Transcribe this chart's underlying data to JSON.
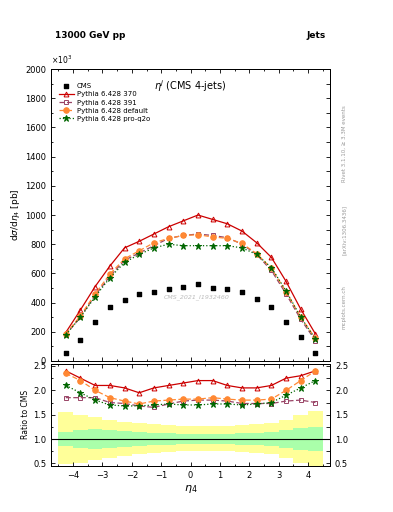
{
  "header_left": "13000 GeV pp",
  "header_right": "Jets",
  "plot_title": "ηʲ (CMS 4-jets)",
  "ylabel_main": "dσ/dη₄ [pb]",
  "ylabel_ratio": "Ratio to CMS",
  "xlabel": "η₄",
  "watermark": "CMS_2021_I1932460",
  "eta_bins": [
    -4.5,
    -4.0,
    -3.5,
    -3.0,
    -2.5,
    -2.0,
    -1.5,
    -1.0,
    -0.5,
    0.0,
    0.5,
    1.0,
    1.5,
    2.0,
    2.5,
    3.0,
    3.5,
    4.0,
    4.5
  ],
  "eta_centers": [
    -4.25,
    -3.75,
    -3.25,
    -2.75,
    -2.25,
    -1.75,
    -1.25,
    -0.75,
    -0.25,
    0.25,
    0.75,
    1.25,
    1.75,
    2.25,
    2.75,
    3.25,
    3.75,
    4.25
  ],
  "cms_data": [
    55,
    145,
    265,
    370,
    415,
    460,
    470,
    490,
    510,
    530,
    500,
    490,
    475,
    425,
    370,
    265,
    165,
    55
  ],
  "py370_data": [
    195,
    350,
    510,
    650,
    775,
    820,
    870,
    920,
    960,
    1000,
    970,
    940,
    890,
    810,
    710,
    545,
    355,
    185
  ],
  "py391_data": [
    180,
    300,
    450,
    580,
    690,
    740,
    790,
    840,
    860,
    870,
    860,
    845,
    800,
    730,
    620,
    460,
    285,
    140
  ],
  "pydef_data": [
    185,
    310,
    460,
    595,
    700,
    755,
    810,
    840,
    860,
    865,
    850,
    840,
    805,
    735,
    635,
    475,
    300,
    155
  ],
  "pyq2o_data": [
    180,
    300,
    440,
    570,
    675,
    730,
    775,
    800,
    790,
    790,
    790,
    790,
    775,
    730,
    640,
    480,
    300,
    150
  ],
  "cms_color": "#000000",
  "py370_color": "#cc0000",
  "py391_color": "#994466",
  "pydef_color": "#ff8833",
  "pyq2o_color": "#006600",
  "ylim_main": [
    0,
    2000
  ],
  "ylim_ratio": [
    0.45,
    2.55
  ],
  "xlim": [
    -4.75,
    4.75
  ],
  "ratio_py370": [
    2.4,
    2.25,
    2.1,
    2.1,
    2.05,
    1.95,
    2.05,
    2.1,
    2.15,
    2.2,
    2.2,
    2.1,
    2.05,
    2.05,
    2.1,
    2.25,
    2.3,
    2.4
  ],
  "ratio_py391": [
    1.85,
    1.85,
    1.85,
    1.75,
    1.73,
    1.68,
    1.65,
    1.72,
    1.78,
    1.8,
    1.8,
    1.78,
    1.73,
    1.73,
    1.73,
    1.78,
    1.8,
    1.75
  ],
  "ratio_pydef": [
    2.35,
    2.2,
    2.0,
    1.85,
    1.78,
    1.72,
    1.78,
    1.8,
    1.82,
    1.82,
    1.85,
    1.82,
    1.8,
    1.8,
    1.82,
    2.0,
    2.2,
    2.4
  ],
  "ratio_pyq2o": [
    2.1,
    1.95,
    1.8,
    1.7,
    1.68,
    1.68,
    1.7,
    1.72,
    1.7,
    1.7,
    1.72,
    1.72,
    1.7,
    1.72,
    1.75,
    1.9,
    2.05,
    2.2
  ],
  "cms_sys_green_lo": [
    0.85,
    0.82,
    0.8,
    0.82,
    0.84,
    0.85,
    0.87,
    0.88,
    0.89,
    0.89,
    0.89,
    0.89,
    0.88,
    0.87,
    0.85,
    0.82,
    0.78,
    0.75
  ],
  "cms_sys_green_hi": [
    1.15,
    1.18,
    1.2,
    1.18,
    1.16,
    1.15,
    1.13,
    1.12,
    1.11,
    1.11,
    1.11,
    1.11,
    1.12,
    1.13,
    1.15,
    1.18,
    1.22,
    1.25
  ],
  "cms_sys_yellow_lo": [
    0.48,
    0.52,
    0.57,
    0.62,
    0.66,
    0.7,
    0.72,
    0.74,
    0.75,
    0.75,
    0.75,
    0.75,
    0.74,
    0.72,
    0.7,
    0.62,
    0.52,
    0.45
  ],
  "cms_sys_yellow_hi": [
    1.55,
    1.5,
    1.45,
    1.4,
    1.36,
    1.33,
    1.3,
    1.28,
    1.27,
    1.27,
    1.27,
    1.27,
    1.28,
    1.3,
    1.33,
    1.4,
    1.5,
    1.58
  ]
}
